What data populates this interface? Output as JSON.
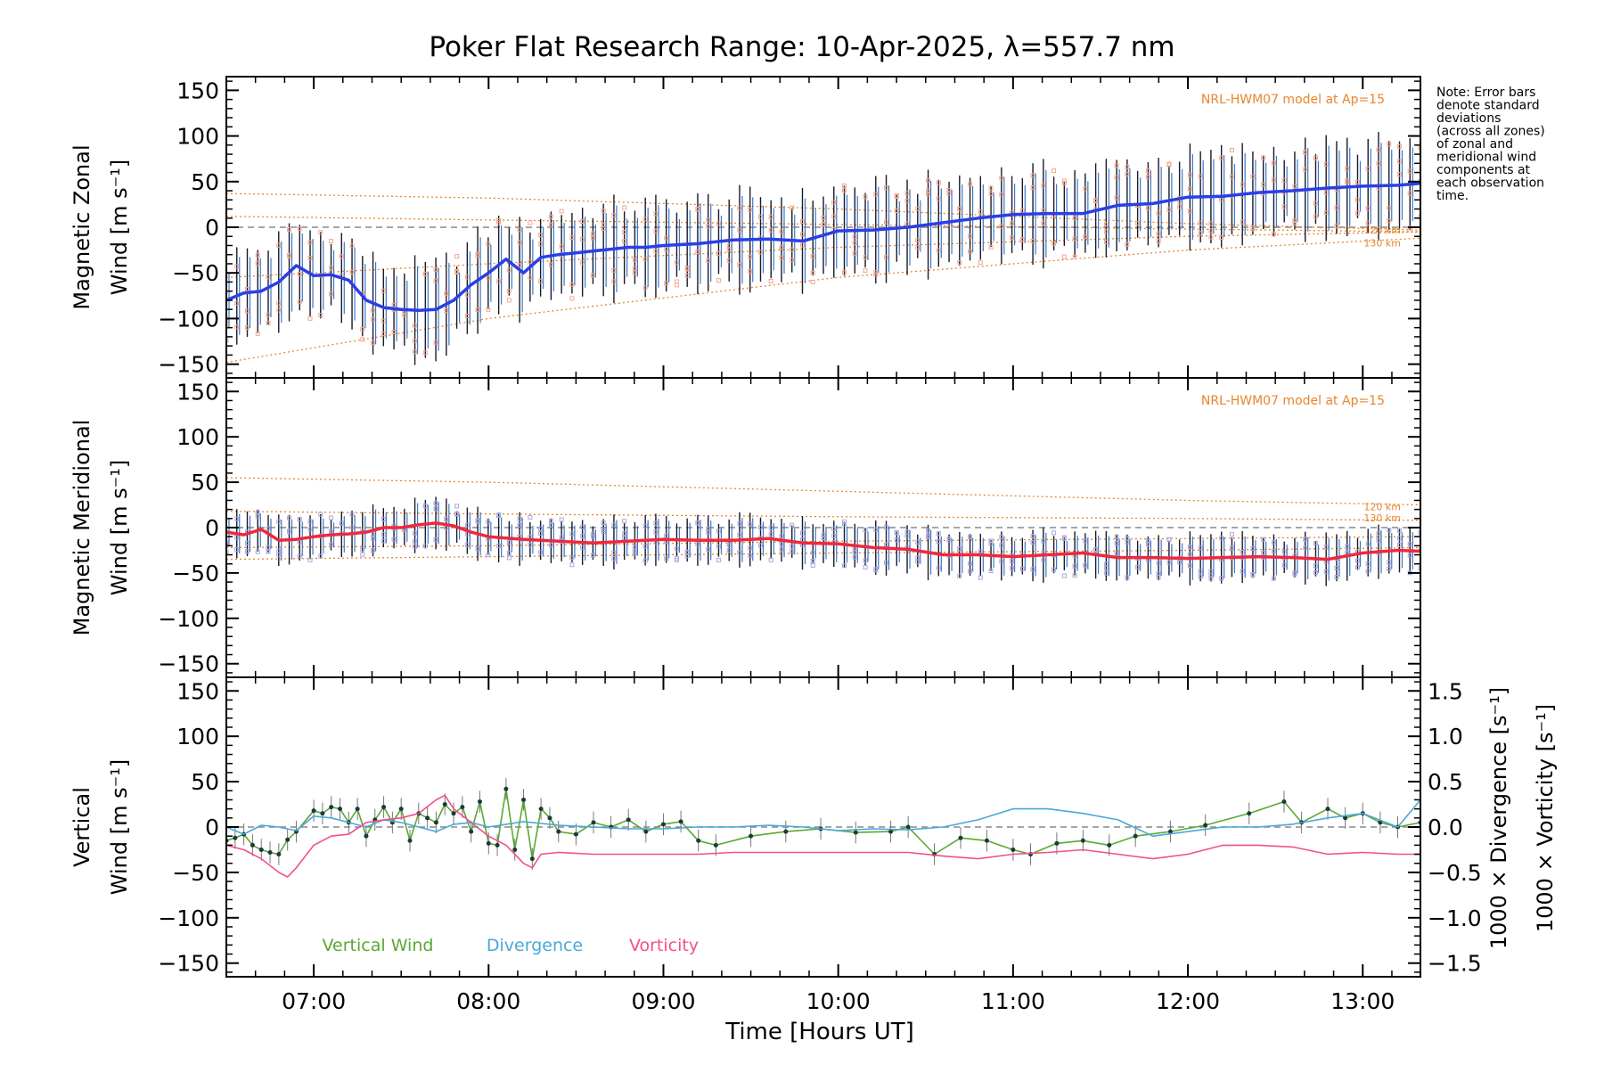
{
  "chart_data": {
    "type": "line",
    "title": "Poker Flat Research Range: 10-Apr-2025, λ=557.7 nm",
    "xlabel": "Time [Hours UT]",
    "xlim": [
      6.5,
      13.33
    ],
    "xticks": [
      "07:00",
      "08:00",
      "09:00",
      "10:00",
      "11:00",
      "12:00",
      "13:00"
    ],
    "note": [
      "Note: Error bars",
      "denote standard",
      "deviations",
      "(across all zones)",
      "of zonal and",
      "meridional wind",
      "components at",
      "each observation",
      "time."
    ],
    "colors": {
      "zonal": "#2a3fe8",
      "meridional": "#f0283c",
      "vertical": "#5aa832",
      "divergence": "#4aa8d8",
      "vorticity": "#f0508c",
      "model": "#e8862d",
      "zone_zonal": "#f4a890",
      "zone_meridional": "#a8a8e0"
    },
    "panels": [
      {
        "name": "zonal",
        "ylabel_line1": "Magnetic Zonal",
        "ylabel_line2": "Wind",
        "ylabel_units": "[m s⁻¹]",
        "ylim": [
          -165,
          165
        ],
        "yticks": [
          "150",
          "100",
          "50",
          "0",
          "−50",
          "−100",
          "−150"
        ],
        "model_label": "NRL-HWM07 model at Ap=15",
        "alt_labels": [
          "120 km",
          "130 km"
        ],
        "series": [
          {
            "name": "",
            "x": [
              6.5,
              6.6,
              6.7,
              6.8,
              6.9,
              7.0,
              7.1,
              7.2,
              7.3,
              7.4,
              7.5,
              7.6,
              7.7,
              7.8,
              7.9,
              8.0,
              8.1,
              8.2,
              8.3,
              8.4,
              8.5,
              8.6,
              8.7,
              8.8,
              8.9,
              9.0,
              9.2,
              9.4,
              9.6,
              9.8,
              10.0,
              10.2,
              10.4,
              10.6,
              10.8,
              11.0,
              11.2,
              11.4,
              11.6,
              11.8,
              12.0,
              12.2,
              12.4,
              12.6,
              12.8,
              13.0,
              13.2,
              13.33
            ],
            "y": [
              -80,
              -72,
              -70,
              -60,
              -42,
              -53,
              -52,
              -58,
              -80,
              -88,
              -90,
              -91,
              -90,
              -80,
              -63,
              -50,
              -35,
              -50,
              -33,
              -30,
              -28,
              -26,
              -24,
              -22,
              -22,
              -20,
              -18,
              -14,
              -13,
              -15,
              -4,
              -3,
              0,
              5,
              10,
              14,
              15,
              15,
              24,
              26,
              33,
              34,
              38,
              40,
              43,
              45,
              46,
              48
            ]
          }
        ],
        "zone_error_half": 55,
        "model": [
          {
            "x": [
              6.5,
              8.0,
              10.0,
              12.0,
              13.33
            ],
            "y": [
              37,
              32,
              20,
              4,
              -3
            ]
          },
          {
            "x": [
              6.5,
              8.0,
              10.0,
              12.0,
              13.33
            ],
            "y": [
              12,
              8,
              3,
              -2,
              -5
            ]
          },
          {
            "x": [
              6.5,
              8.0,
              10.0,
              12.0,
              13.33
            ],
            "y": [
              -55,
              -40,
              -22,
              -10,
              -5
            ]
          },
          {
            "x": [
              6.5,
              8.0,
              10.0,
              12.0,
              13.33
            ],
            "y": [
              -148,
              -100,
              -55,
              -25,
              -12
            ]
          }
        ]
      },
      {
        "name": "meridional",
        "ylabel_line1": "Magnetic Meridional",
        "ylabel_line2": "Wind",
        "ylabel_units": "[m s⁻¹]",
        "ylim": [
          -165,
          165
        ],
        "yticks": [
          "150",
          "100",
          "50",
          "0",
          "−50",
          "−100",
          "−150"
        ],
        "model_label": "NRL-HWM07 model at Ap=15",
        "alt_labels": [
          "120 km",
          "130 km"
        ],
        "series": [
          {
            "name": "",
            "x": [
              6.5,
              6.6,
              6.7,
              6.8,
              6.9,
              7.0,
              7.1,
              7.2,
              7.3,
              7.4,
              7.5,
              7.6,
              7.7,
              7.8,
              7.9,
              8.0,
              8.2,
              8.4,
              8.6,
              8.8,
              9.0,
              9.2,
              9.4,
              9.6,
              9.8,
              10.0,
              10.2,
              10.4,
              10.6,
              10.8,
              11.0,
              11.2,
              11.4,
              11.6,
              11.8,
              12.0,
              12.2,
              12.4,
              12.6,
              12.8,
              13.0,
              13.2,
              13.33
            ],
            "y": [
              -5,
              -8,
              -2,
              -14,
              -13,
              -10,
              -8,
              -7,
              -5,
              0,
              0,
              3,
              5,
              2,
              -5,
              -10,
              -13,
              -15,
              -17,
              -15,
              -13,
              -14,
              -14,
              -12,
              -17,
              -18,
              -22,
              -24,
              -30,
              -30,
              -32,
              -30,
              -28,
              -33,
              -33,
              -34,
              -33,
              -32,
              -33,
              -35,
              -28,
              -25,
              -26
            ]
          }
        ],
        "zone_error_half": 28,
        "model": [
          {
            "x": [
              6.5,
              8.0,
              10.0,
              12.0,
              13.33
            ],
            "y": [
              55,
              50,
              40,
              30,
              25
            ]
          },
          {
            "x": [
              6.5,
              8.0,
              10.0,
              12.0,
              13.33
            ],
            "y": [
              18,
              15,
              12,
              10,
              8
            ]
          },
          {
            "x": [
              6.5,
              8.0,
              10.0,
              12.0,
              13.33
            ],
            "y": [
              -22,
              -20,
              -15,
              -12,
              -10
            ]
          },
          {
            "x": [
              6.5,
              8.0,
              10.0,
              12.0,
              13.33
            ],
            "y": [
              -35,
              -32,
              -28,
              -25,
              -22
            ]
          }
        ]
      },
      {
        "name": "vertical",
        "ylabel_line1": "Vertical",
        "ylabel_line2": "Wind",
        "ylabel_units": "[m s⁻¹]",
        "ylim": [
          -165,
          165
        ],
        "yticks": [
          "150",
          "100",
          "50",
          "0",
          "−50",
          "−100",
          "−150"
        ],
        "y2ticks": [
          "1.5",
          "1.0",
          "0.5",
          "0.0",
          "−0.5",
          "−1.0",
          "−1.5"
        ],
        "y2label_div": "1000 × Divergence [s⁻¹]",
        "y2label_vort": "1000 × Vorticity [s⁻¹]",
        "legend": [
          "Vertical Wind",
          "Divergence",
          "Vorticity"
        ],
        "series": [
          {
            "name": "Vertical Wind",
            "x": [
              6.5,
              6.55,
              6.6,
              6.65,
              6.7,
              6.75,
              6.8,
              6.85,
              6.9,
              7.0,
              7.05,
              7.1,
              7.15,
              7.2,
              7.25,
              7.3,
              7.35,
              7.4,
              7.45,
              7.5,
              7.55,
              7.6,
              7.65,
              7.7,
              7.75,
              7.8,
              7.85,
              7.9,
              7.95,
              8.0,
              8.05,
              8.1,
              8.15,
              8.2,
              8.25,
              8.3,
              8.35,
              8.4,
              8.5,
              8.6,
              8.7,
              8.8,
              8.9,
              9.0,
              9.1,
              9.2,
              9.3,
              9.5,
              9.7,
              9.9,
              10.1,
              10.3,
              10.4,
              10.55,
              10.7,
              10.85,
              11.0,
              11.1,
              11.25,
              11.4,
              11.55,
              11.7,
              11.9,
              12.1,
              12.35,
              12.55,
              12.65,
              12.8,
              12.9,
              13.0,
              13.1,
              13.2,
              13.33
            ],
            "y": [
              -15,
              -12,
              -8,
              -20,
              -25,
              -28,
              -30,
              -14,
              -5,
              18,
              15,
              22,
              20,
              5,
              20,
              -10,
              8,
              22,
              5,
              20,
              -15,
              15,
              10,
              5,
              25,
              15,
              22,
              -5,
              28,
              -18,
              -20,
              42,
              -25,
              30,
              -35,
              20,
              10,
              -5,
              -8,
              5,
              0,
              8,
              -5,
              3,
              6,
              -15,
              -20,
              -10,
              -5,
              -2,
              -6,
              -5,
              0,
              -30,
              -12,
              -15,
              -25,
              -30,
              -18,
              -15,
              -20,
              -10,
              -5,
              2,
              15,
              28,
              5,
              20,
              10,
              15,
              5,
              0,
              5
            ]
          },
          {
            "name": "Divergence",
            "y2": true,
            "x": [
              6.5,
              6.6,
              6.7,
              6.8,
              6.9,
              7.0,
              7.1,
              7.2,
              7.3,
              7.4,
              7.5,
              7.6,
              7.7,
              7.8,
              7.9,
              8.0,
              8.2,
              8.4,
              8.6,
              8.8,
              9.0,
              9.2,
              9.4,
              9.6,
              9.8,
              10.0,
              10.2,
              10.4,
              10.6,
              10.8,
              11.0,
              11.2,
              11.4,
              11.6,
              11.8,
              12.0,
              12.2,
              12.4,
              12.6,
              12.8,
              13.0,
              13.2,
              13.33
            ],
            "y": [
              0.0,
              -0.08,
              0.02,
              0.0,
              -0.04,
              0.12,
              0.1,
              0.05,
              0.0,
              0.08,
              0.05,
              0.0,
              -0.05,
              0.03,
              0.05,
              0.0,
              0.06,
              0.02,
              0.0,
              -0.02,
              -0.02,
              0.0,
              0.0,
              0.02,
              0.0,
              -0.04,
              -0.02,
              -0.03,
              0.0,
              0.08,
              0.2,
              0.2,
              0.15,
              0.08,
              -0.1,
              -0.05,
              0.0,
              0.0,
              0.03,
              0.1,
              0.15,
              0.0,
              0.3
            ]
          },
          {
            "name": "Vorticity",
            "y2": true,
            "x": [
              6.5,
              6.6,
              6.7,
              6.8,
              6.85,
              6.9,
              7.0,
              7.1,
              7.2,
              7.3,
              7.4,
              7.5,
              7.6,
              7.7,
              7.75,
              7.8,
              7.9,
              8.0,
              8.1,
              8.2,
              8.25,
              8.3,
              8.4,
              8.6,
              8.8,
              9.0,
              9.2,
              9.4,
              9.6,
              9.8,
              10.0,
              10.2,
              10.4,
              10.6,
              10.8,
              11.0,
              11.2,
              11.4,
              11.6,
              11.8,
              12.0,
              12.2,
              12.4,
              12.6,
              12.8,
              13.0,
              13.2,
              13.33
            ],
            "y": [
              -0.2,
              -0.25,
              -0.35,
              -0.5,
              -0.55,
              -0.45,
              -0.2,
              -0.1,
              -0.08,
              0.05,
              0.08,
              0.1,
              0.15,
              0.3,
              0.35,
              0.2,
              0.05,
              -0.1,
              -0.2,
              -0.4,
              -0.45,
              -0.3,
              -0.28,
              -0.3,
              -0.3,
              -0.3,
              -0.3,
              -0.28,
              -0.28,
              -0.28,
              -0.28,
              -0.28,
              -0.28,
              -0.32,
              -0.35,
              -0.3,
              -0.28,
              -0.25,
              -0.3,
              -0.35,
              -0.3,
              -0.2,
              -0.2,
              -0.22,
              -0.3,
              -0.28,
              -0.3,
              -0.3
            ]
          }
        ]
      }
    ]
  }
}
